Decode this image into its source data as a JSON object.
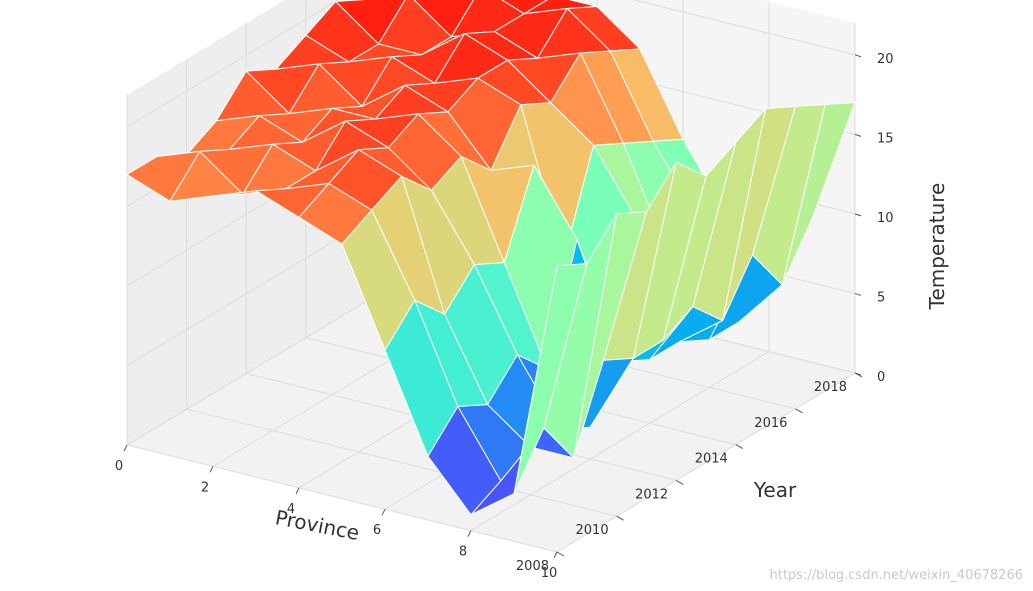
{
  "chart_data": {
    "type": "surface",
    "colormap": "rainbow",
    "edge_color": "#ffffff",
    "x": [
      0,
      1,
      2,
      3,
      4,
      5,
      6,
      7,
      8,
      9,
      10
    ],
    "y": [
      2008,
      2009,
      2010,
      2011,
      2012,
      2013,
      2014,
      2015,
      2016,
      2017,
      2018
    ],
    "z": [
      [
        17,
        17,
        16,
        17,
        19,
        18,
        19,
        20,
        19,
        18,
        17
      ],
      [
        16,
        18,
        17,
        18,
        17,
        19,
        18,
        18,
        20,
        19,
        18
      ],
      [
        17,
        16,
        18,
        17,
        18,
        17,
        19,
        18,
        18,
        20,
        19
      ],
      [
        18,
        17,
        17,
        19,
        18,
        19,
        18,
        20,
        19,
        19,
        19
      ],
      [
        17,
        18,
        19,
        18,
        19,
        18,
        19,
        19,
        18,
        20,
        19
      ],
      [
        16,
        17,
        18,
        16,
        17,
        15,
        18,
        17,
        19,
        18,
        17
      ],
      [
        10,
        12,
        10,
        12,
        11,
        16,
        9,
        15,
        14,
        13,
        12
      ],
      [
        4,
        6,
        5,
        7,
        5,
        12,
        6,
        11,
        8,
        9,
        8
      ],
      [
        1,
        2,
        3,
        3,
        2,
        5,
        4,
        4,
        3,
        3,
        4
      ],
      [
        3,
        6,
        3,
        8,
        7,
        7,
        8,
        6,
        9,
        6,
        9
      ],
      [
        18,
        17,
        19,
        18,
        20,
        18,
        19,
        20,
        19,
        18,
        17
      ]
    ],
    "xlabel": "Province",
    "ylabel": "Year",
    "zlabel": "Temperature",
    "x_ticks": [
      "0",
      "2",
      "4",
      "6",
      "8",
      "10"
    ],
    "y_ticks": [
      "2008",
      "2010",
      "2012",
      "2014",
      "2016",
      "2018"
    ],
    "z_ticks": [
      "0",
      "5",
      "10",
      "15",
      "20"
    ],
    "xlim": [
      0,
      10
    ],
    "ylim": [
      2008,
      2018
    ],
    "zlim": [
      0,
      22
    ],
    "grid": true
  },
  "watermark": "https://blog.csdn.net/weixin_40678266"
}
